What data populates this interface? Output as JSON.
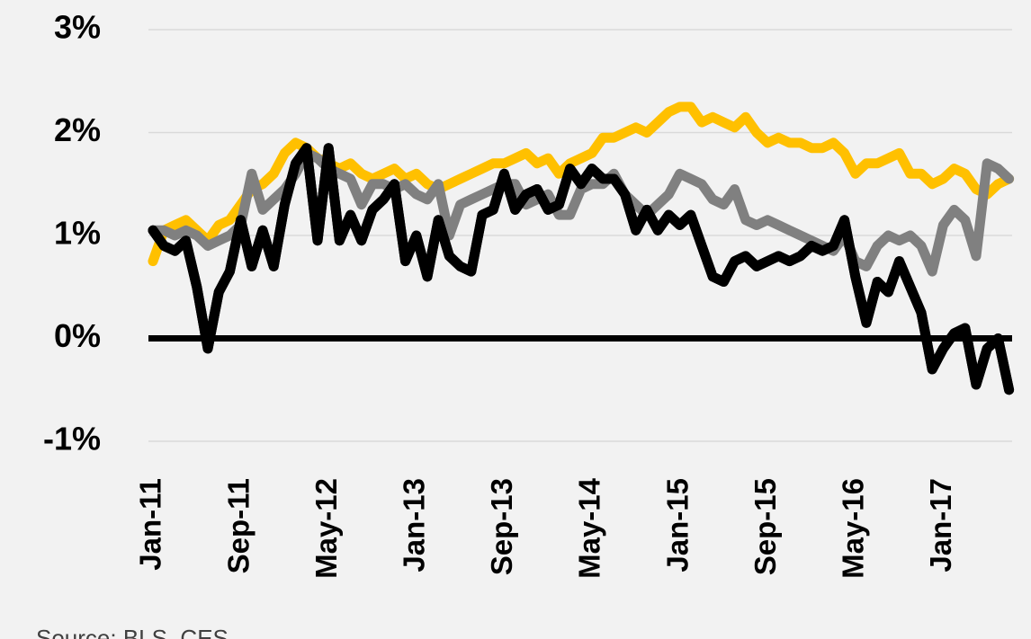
{
  "chart_data": {
    "type": "line",
    "source": "Source: BLS, CES",
    "categories": [
      "Jan-11",
      null,
      null,
      null,
      null,
      null,
      null,
      null,
      "Sep-11",
      null,
      null,
      null,
      null,
      null,
      null,
      null,
      "May-12",
      null,
      null,
      null,
      null,
      null,
      null,
      null,
      "Jan-13",
      null,
      null,
      null,
      null,
      null,
      null,
      null,
      "Sep-13",
      null,
      null,
      null,
      null,
      null,
      null,
      null,
      "May-14",
      null,
      null,
      null,
      null,
      null,
      null,
      null,
      "Jan-15",
      null,
      null,
      null,
      null,
      null,
      null,
      null,
      "Sep-15",
      null,
      null,
      null,
      null,
      null,
      null,
      null,
      "May-16",
      null,
      null,
      null,
      null,
      null,
      null,
      null,
      "Jan-17",
      null,
      null,
      null,
      null,
      null,
      null
    ],
    "series": [
      {
        "color": "#FFC000",
        "values": [
          0.75,
          1.05,
          1.1,
          1.15,
          1.05,
          0.95,
          1.1,
          1.15,
          1.3,
          1.45,
          1.5,
          1.6,
          1.8,
          1.9,
          1.85,
          1.75,
          1.7,
          1.65,
          1.7,
          1.6,
          1.55,
          1.6,
          1.65,
          1.55,
          1.6,
          1.5,
          1.45,
          1.5,
          1.55,
          1.6,
          1.65,
          1.7,
          1.7,
          1.75,
          1.8,
          1.7,
          1.75,
          1.6,
          1.7,
          1.75,
          1.8,
          1.95,
          1.95,
          2.0,
          2.05,
          2.0,
          2.1,
          2.2,
          2.25,
          2.25,
          2.1,
          2.15,
          2.1,
          2.05,
          2.15,
          2.0,
          1.9,
          1.95,
          1.9,
          1.9,
          1.85,
          1.85,
          1.9,
          1.8,
          1.6,
          1.7,
          1.7,
          1.75,
          1.8,
          1.6,
          1.6,
          1.5,
          1.55,
          1.65,
          1.6,
          1.45,
          1.4,
          1.5,
          1.55
        ]
      },
      {
        "color": "#808080",
        "values": [
          1.05,
          1.05,
          1.0,
          1.05,
          1.0,
          0.9,
          0.95,
          1.0,
          1.1,
          1.6,
          1.25,
          1.35,
          1.45,
          1.6,
          1.8,
          1.75,
          1.65,
          1.6,
          1.55,
          1.3,
          1.5,
          1.5,
          1.45,
          1.5,
          1.4,
          1.35,
          1.5,
          1.0,
          1.3,
          1.35,
          1.4,
          1.45,
          1.5,
          1.5,
          1.3,
          1.35,
          1.4,
          1.2,
          1.2,
          1.45,
          1.5,
          1.5,
          1.6,
          1.4,
          1.3,
          1.2,
          1.3,
          1.4,
          1.6,
          1.55,
          1.5,
          1.35,
          1.3,
          1.45,
          1.15,
          1.1,
          1.15,
          1.1,
          1.05,
          1.0,
          0.95,
          0.9,
          0.85,
          1.0,
          0.75,
          0.7,
          0.9,
          1.0,
          0.95,
          1.0,
          0.9,
          0.65,
          1.1,
          1.25,
          1.15,
          0.8,
          1.7,
          1.65,
          1.55
        ]
      },
      {
        "color": "#000000",
        "values": [
          1.05,
          0.9,
          0.85,
          0.95,
          0.5,
          -0.1,
          0.45,
          0.65,
          1.15,
          0.7,
          1.05,
          0.7,
          1.3,
          1.7,
          1.85,
          0.95,
          1.85,
          0.95,
          1.2,
          0.95,
          1.25,
          1.35,
          1.5,
          0.75,
          1.0,
          0.6,
          1.15,
          0.8,
          0.7,
          0.65,
          1.2,
          1.25,
          1.6,
          1.25,
          1.4,
          1.45,
          1.25,
          1.3,
          1.65,
          1.5,
          1.65,
          1.55,
          1.55,
          1.4,
          1.05,
          1.25,
          1.05,
          1.2,
          1.1,
          1.2,
          0.9,
          0.6,
          0.55,
          0.75,
          0.8,
          0.7,
          0.75,
          0.8,
          0.75,
          0.8,
          0.9,
          0.85,
          0.9,
          1.15,
          0.6,
          0.15,
          0.55,
          0.45,
          0.75,
          0.5,
          0.25,
          -0.3,
          -0.1,
          0.05,
          0.1,
          -0.45,
          -0.1,
          0.0,
          -0.5
        ]
      }
    ],
    "ylim": [
      -1,
      3
    ],
    "yticks": [
      {
        "value": -1,
        "label": "-1%"
      },
      {
        "value": 0,
        "label": "0%"
      },
      {
        "value": 1,
        "label": "1%"
      },
      {
        "value": 2,
        "label": "2%"
      },
      {
        "value": 3,
        "label": "3%"
      }
    ],
    "grid": true
  }
}
